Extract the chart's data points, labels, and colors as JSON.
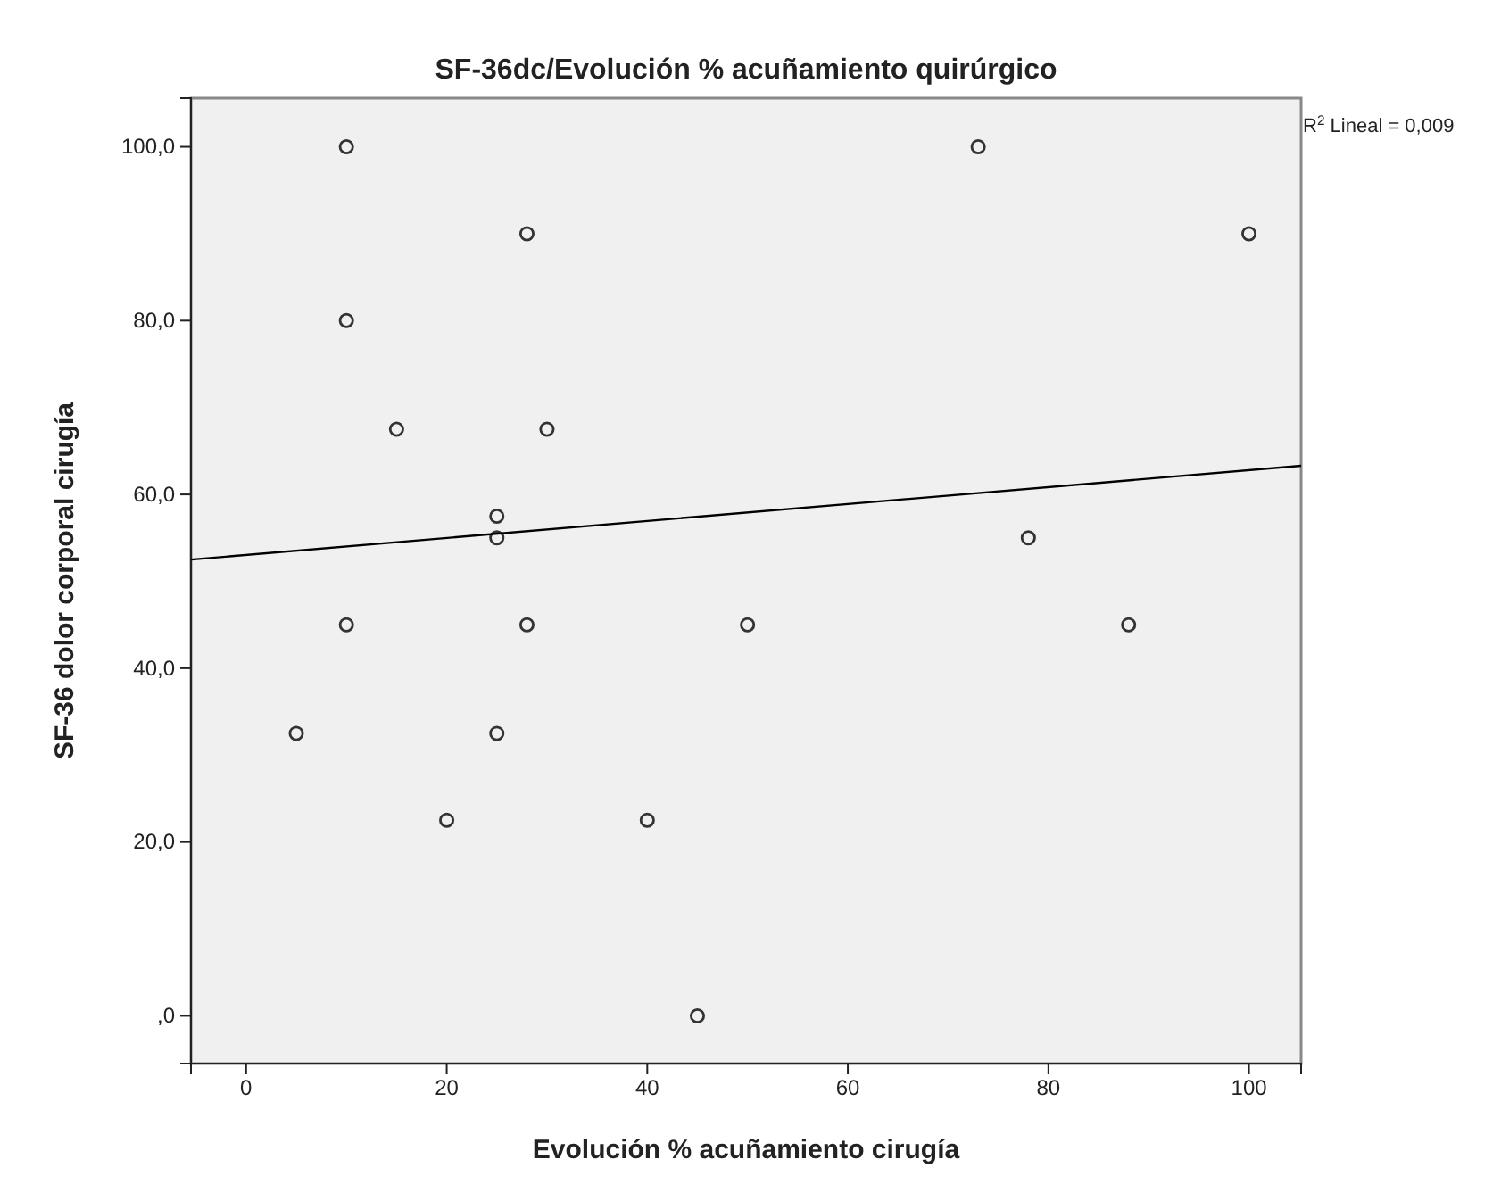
{
  "chart_data": {
    "type": "scatter",
    "title": "SF-36dc/Evolución % acuñamiento quirúrgico",
    "xlabel": "Evolución % acuñamiento cirugía",
    "ylabel": "SF-36 dolor corporal cirugía",
    "annotations": [
      "R$^{2}$ Lineal = 0,009"
    ],
    "xlim": [
      -5.5,
      105.2
    ],
    "ylim": [
      -5.5,
      105.6
    ],
    "xticks": [
      0,
      20,
      40,
      60,
      80,
      100
    ],
    "yticks": [
      {
        "value": 0,
        "label": ",0"
      },
      {
        "value": 20,
        "label": "20,0"
      },
      {
        "value": 40,
        "label": "40,0"
      },
      {
        "value": 60,
        "label": "60,0"
      },
      {
        "value": 80,
        "label": "80,0"
      },
      {
        "value": 100,
        "label": "100,0"
      }
    ],
    "grid": false,
    "series": [
      {
        "color": "#333333",
        "marker": "circle",
        "x": [
          5,
          10,
          10,
          10,
          15,
          20,
          25,
          25,
          25,
          28,
          28,
          30,
          40,
          45,
          50,
          73,
          78,
          88,
          100
        ],
        "values": [
          32.5,
          100,
          80,
          45,
          67.5,
          22.5,
          57.5,
          55,
          32.5,
          90,
          45,
          67.5,
          22.5,
          0,
          45,
          100,
          55,
          45,
          90
        ]
      },
      {
        "type": "line",
        "color": "#000000",
        "marker": "none",
        "x": [
          -5.5,
          105.2
        ],
        "values": [
          52.5,
          63.3
        ]
      }
    ]
  }
}
